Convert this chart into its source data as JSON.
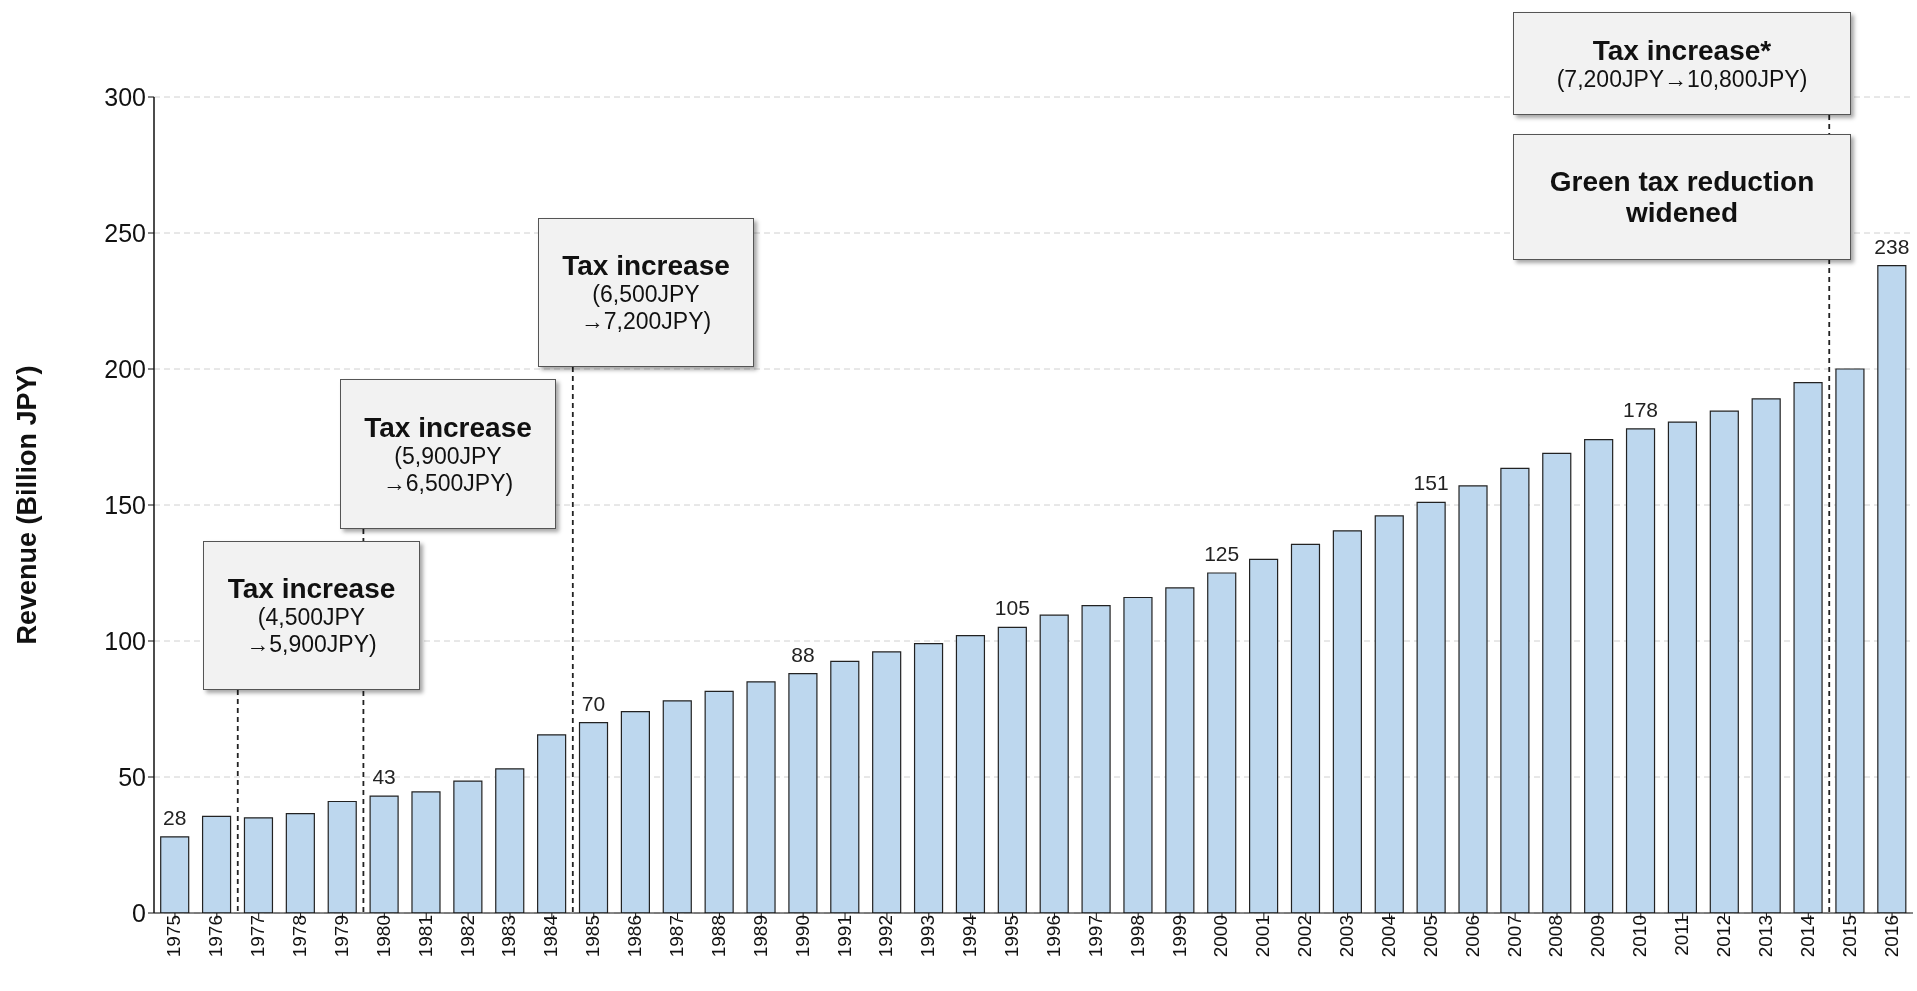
{
  "chart_data": {
    "type": "bar",
    "ylabel": "Revenue (Billion JPY)",
    "categories": [
      "1975",
      "1976",
      "1977",
      "1978",
      "1979",
      "1980",
      "1981",
      "1982",
      "1983",
      "1984",
      "1985",
      "1986",
      "1987",
      "1988",
      "1989",
      "1990",
      "1991",
      "1992",
      "1993",
      "1994",
      "1995",
      "1996",
      "1997",
      "1998",
      "1999",
      "2000",
      "2001",
      "2002",
      "2003",
      "2004",
      "2005",
      "2006",
      "2007",
      "2008",
      "2009",
      "2010",
      "2011",
      "2012",
      "2013",
      "2014",
      "2015",
      "2016"
    ],
    "values": [
      28,
      35.5,
      35,
      36.5,
      41,
      43,
      44.5,
      48.5,
      53,
      65.5,
      70,
      74,
      78,
      81.5,
      85,
      88,
      92.5,
      96,
      99,
      102,
      105,
      109.5,
      113,
      116,
      119.5,
      125,
      130,
      135.5,
      140.5,
      146,
      151,
      157,
      163.5,
      169,
      174,
      178,
      180.5,
      184.5,
      189,
      195,
      200,
      238
    ],
    "value_labels": [
      "28",
      null,
      null,
      null,
      null,
      "43",
      null,
      null,
      null,
      null,
      "70",
      null,
      null,
      null,
      null,
      "88",
      null,
      null,
      null,
      null,
      "105",
      null,
      null,
      null,
      null,
      "125",
      null,
      null,
      null,
      null,
      "151",
      null,
      null,
      null,
      null,
      "178",
      null,
      null,
      null,
      null,
      null,
      "238"
    ],
    "color": "#bdd7ee",
    "ylim": [
      0,
      300
    ],
    "yticks": [
      0,
      50,
      100,
      150,
      200,
      250,
      300
    ],
    "grid": "y",
    "legend": false,
    "ref_lines": [
      {
        "axis": "x",
        "value": "1977",
        "label": "Tax increase\n(4,500JPY →5,900JPY)",
        "line_style": "dashed",
        "color": "#222222"
      },
      {
        "axis": "x",
        "value": "1980",
        "label": "Tax increase\n(5,900JPY →6,500JPY)",
        "line_style": "dashed",
        "color": "#222222"
      },
      {
        "axis": "x",
        "value": "1985",
        "label": "Tax increase\n(6,500JPY →7,200JPY)",
        "line_style": "dashed",
        "color": "#222222"
      },
      {
        "axis": "x",
        "value": "2015",
        "label": "Tax increase*\n(7,200JPY→10,800JPY)",
        "line_style": "dashed",
        "color": "#222222"
      }
    ],
    "annotations": [
      "Green tax reduction widened"
    ]
  }
}
